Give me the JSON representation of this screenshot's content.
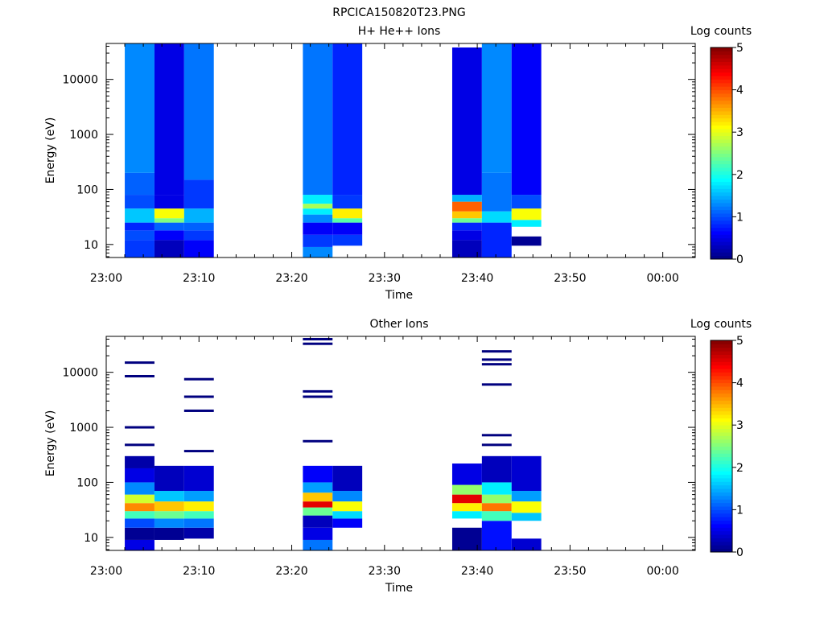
{
  "page_title": "RPCICA150820T23.PNG",
  "colormap": {
    "stops": [
      "#00007f",
      "#0000ff",
      "#007fff",
      "#00ffff",
      "#7fff7f",
      "#ffff00",
      "#ff7f00",
      "#ff0000",
      "#7f0000"
    ]
  },
  "chart_data": [
    {
      "type": "heatmap",
      "title": "H+ He++ Ions",
      "xlabel": "Time",
      "ylabel": "Energy (eV)",
      "x_ticks": [
        "23:00",
        "23:10",
        "23:20",
        "23:30",
        "23:40",
        "23:50",
        "00:00"
      ],
      "x_range_minutes": [
        0,
        63.5
      ],
      "y_scale": "log",
      "y_ticks": [
        "10",
        "100",
        "1000",
        "10000"
      ],
      "y_range_eV": [
        5.8,
        45000
      ],
      "colorbar": {
        "label": "Log counts",
        "range": [
          0,
          5
        ],
        "ticks": [
          "0",
          "1",
          "2",
          "3",
          "4",
          "5"
        ]
      },
      "columns": [
        {
          "t_start": 2.0,
          "t_end": 5.2,
          "e_min": 5.8,
          "e_max": 45000,
          "bands": [
            {
              "e_min": 5.8,
              "e_max": 12,
              "value": 0.9
            },
            {
              "e_min": 12,
              "e_max": 18,
              "value": 1.0
            },
            {
              "e_min": 18,
              "e_max": 25,
              "value": 0.8
            },
            {
              "e_min": 25,
              "e_max": 45,
              "value": 1.6
            },
            {
              "e_min": 45,
              "e_max": 80,
              "value": 1.0
            },
            {
              "e_min": 80,
              "e_max": 200,
              "value": 1.1
            },
            {
              "e_min": 200,
              "e_max": 45000,
              "value": 1.3
            }
          ]
        },
        {
          "t_start": 5.2,
          "t_end": 8.4,
          "e_min": 5.8,
          "e_max": 45000,
          "bands": [
            {
              "e_min": 5.8,
              "e_max": 12,
              "value": 0.3
            },
            {
              "e_min": 12,
              "e_max": 18,
              "value": 0.6
            },
            {
              "e_min": 18,
              "e_max": 25,
              "value": 1.1
            },
            {
              "e_min": 25,
              "e_max": 30,
              "value": 2.5
            },
            {
              "e_min": 30,
              "e_max": 45,
              "value": 3.1
            },
            {
              "e_min": 45,
              "e_max": 80,
              "value": 0.5
            },
            {
              "e_min": 80,
              "e_max": 45000,
              "value": 0.5
            }
          ]
        },
        {
          "t_start": 8.4,
          "t_end": 11.6,
          "e_min": 5.8,
          "e_max": 45000,
          "bands": [
            {
              "e_min": 5.8,
              "e_max": 12,
              "value": 0.6
            },
            {
              "e_min": 12,
              "e_max": 18,
              "value": 0.9
            },
            {
              "e_min": 18,
              "e_max": 25,
              "value": 1.1
            },
            {
              "e_min": 25,
              "e_max": 45,
              "value": 1.5
            },
            {
              "e_min": 45,
              "e_max": 150,
              "value": 0.9
            },
            {
              "e_min": 150,
              "e_max": 45000,
              "value": 1.2
            }
          ]
        },
        {
          "t_start": 21.2,
          "t_end": 24.4,
          "e_min": 5.8,
          "e_max": 45000,
          "bands": [
            {
              "e_min": 5.8,
              "e_max": 9,
              "value": 1.3
            },
            {
              "e_min": 9,
              "e_max": 15,
              "value": 0.9
            },
            {
              "e_min": 15,
              "e_max": 25,
              "value": 0.6
            },
            {
              "e_min": 25,
              "e_max": 35,
              "value": 1.3
            },
            {
              "e_min": 35,
              "e_max": 45,
              "value": 1.8
            },
            {
              "e_min": 45,
              "e_max": 55,
              "value": 2.7
            },
            {
              "e_min": 55,
              "e_max": 80,
              "value": 1.8
            },
            {
              "e_min": 80,
              "e_max": 45000,
              "value": 1.2
            }
          ]
        },
        {
          "t_start": 24.4,
          "t_end": 27.6,
          "e_min": 9.5,
          "e_max": 45000,
          "bands": [
            {
              "e_min": 9.5,
              "e_max": 15,
              "value": 0.9
            },
            {
              "e_min": 15,
              "e_max": 25,
              "value": 0.6
            },
            {
              "e_min": 25,
              "e_max": 30,
              "value": 2.3
            },
            {
              "e_min": 30,
              "e_max": 45,
              "value": 3.2
            },
            {
              "e_min": 45,
              "e_max": 80,
              "value": 0.9
            },
            {
              "e_min": 80,
              "e_max": 45000,
              "value": 0.8
            }
          ]
        },
        {
          "t_start": 37.3,
          "t_end": 40.5,
          "e_min": 5.8,
          "e_max": 38000,
          "bands": [
            {
              "e_min": 5.8,
              "e_max": 12,
              "value": 0.3
            },
            {
              "e_min": 12,
              "e_max": 18,
              "value": 0.5
            },
            {
              "e_min": 18,
              "e_max": 25,
              "value": 0.8
            },
            {
              "e_min": 25,
              "e_max": 30,
              "value": 2.4
            },
            {
              "e_min": 30,
              "e_max": 40,
              "value": 3.4
            },
            {
              "e_min": 40,
              "e_max": 60,
              "value": 3.9
            },
            {
              "e_min": 60,
              "e_max": 80,
              "value": 1.5
            },
            {
              "e_min": 80,
              "e_max": 38000,
              "value": 0.5
            }
          ]
        },
        {
          "t_start": 40.5,
          "t_end": 43.7,
          "e_min": 5.8,
          "e_max": 45000,
          "bands": [
            {
              "e_min": 5.8,
              "e_max": 25,
              "value": 0.8
            },
            {
              "e_min": 25,
              "e_max": 40,
              "value": 1.7
            },
            {
              "e_min": 40,
              "e_max": 200,
              "value": 1.2
            },
            {
              "e_min": 200,
              "e_max": 45000,
              "value": 1.3
            }
          ]
        },
        {
          "t_start": 43.7,
          "t_end": 46.9,
          "e_min": 9.5,
          "e_max": 45000,
          "bands": [
            {
              "e_min": 9.5,
              "e_max": 14,
              "value": 0.1
            },
            {
              "e_min": 21,
              "e_max": 28,
              "value": 1.8
            },
            {
              "e_min": 28,
              "e_max": 45,
              "value": 3.1
            },
            {
              "e_min": 45,
              "e_max": 80,
              "value": 1.0
            },
            {
              "e_min": 80,
              "e_max": 45000,
              "value": 0.6
            }
          ]
        }
      ]
    },
    {
      "type": "heatmap",
      "title": "Other Ions",
      "xlabel": "Time",
      "ylabel": "Energy (eV)",
      "x_ticks": [
        "23:00",
        "23:10",
        "23:20",
        "23:30",
        "23:40",
        "23:50",
        "00:00"
      ],
      "x_range_minutes": [
        0,
        63.5
      ],
      "y_scale": "log",
      "y_ticks": [
        "10",
        "100",
        "1000",
        "10000"
      ],
      "y_range_eV": [
        5.8,
        45000
      ],
      "colorbar": {
        "label": "Log counts",
        "range": [
          0,
          5
        ],
        "ticks": [
          "0",
          "1",
          "2",
          "3",
          "4",
          "5"
        ]
      },
      "columns": [
        {
          "t_start": 2.0,
          "t_end": 5.2,
          "e_min": 5.8,
          "e_max": 300,
          "bands": [
            {
              "e_min": 5.8,
              "e_max": 9,
              "value": 0.5
            },
            {
              "e_min": 9,
              "e_max": 15,
              "value": 0.1
            },
            {
              "e_min": 15,
              "e_max": 22,
              "value": 1.0
            },
            {
              "e_min": 22,
              "e_max": 30,
              "value": 2.2
            },
            {
              "e_min": 30,
              "e_max": 42,
              "value": 3.7
            },
            {
              "e_min": 42,
              "e_max": 60,
              "value": 2.9
            },
            {
              "e_min": 60,
              "e_max": 100,
              "value": 1.3
            },
            {
              "e_min": 100,
              "e_max": 180,
              "value": 0.5
            },
            {
              "e_min": 180,
              "e_max": 300,
              "value": 0.2
            }
          ]
        },
        {
          "t_start": 5.2,
          "t_end": 8.4,
          "e_min": 9,
          "e_max": 200,
          "bands": [
            {
              "e_min": 9,
              "e_max": 15,
              "value": 0.1
            },
            {
              "e_min": 15,
              "e_max": 22,
              "value": 1.3
            },
            {
              "e_min": 22,
              "e_max": 30,
              "value": 2.4
            },
            {
              "e_min": 30,
              "e_max": 45,
              "value": 3.4
            },
            {
              "e_min": 45,
              "e_max": 70,
              "value": 1.6
            },
            {
              "e_min": 70,
              "e_max": 200,
              "value": 0.3
            }
          ]
        },
        {
          "t_start": 8.4,
          "t_end": 11.6,
          "e_min": 9.5,
          "e_max": 200,
          "bands": [
            {
              "e_min": 9.5,
              "e_max": 15,
              "value": 0.2
            },
            {
              "e_min": 15,
              "e_max": 22,
              "value": 1.2
            },
            {
              "e_min": 22,
              "e_max": 30,
              "value": 2.2
            },
            {
              "e_min": 30,
              "e_max": 45,
              "value": 3.2
            },
            {
              "e_min": 45,
              "e_max": 70,
              "value": 1.4
            },
            {
              "e_min": 70,
              "e_max": 200,
              "value": 0.4
            }
          ]
        },
        {
          "t_start": 21.2,
          "t_end": 24.4,
          "e_min": 5.8,
          "e_max": 200,
          "bands": [
            {
              "e_min": 5.8,
              "e_max": 9,
              "value": 1.2
            },
            {
              "e_min": 9,
              "e_max": 15,
              "value": 0.5
            },
            {
              "e_min": 15,
              "e_max": 25,
              "value": 0.3
            },
            {
              "e_min": 25,
              "e_max": 35,
              "value": 2.4
            },
            {
              "e_min": 35,
              "e_max": 45,
              "value": 4.5
            },
            {
              "e_min": 45,
              "e_max": 65,
              "value": 3.4
            },
            {
              "e_min": 65,
              "e_max": 100,
              "value": 1.4
            },
            {
              "e_min": 100,
              "e_max": 200,
              "value": 0.6
            }
          ]
        },
        {
          "t_start": 24.4,
          "t_end": 27.6,
          "e_min": 15,
          "e_max": 200,
          "bands": [
            {
              "e_min": 15,
              "e_max": 22,
              "value": 0.6
            },
            {
              "e_min": 22,
              "e_max": 30,
              "value": 1.7
            },
            {
              "e_min": 30,
              "e_max": 45,
              "value": 3.1
            },
            {
              "e_min": 45,
              "e_max": 70,
              "value": 1.3
            },
            {
              "e_min": 70,
              "e_max": 200,
              "value": 0.3
            }
          ]
        },
        {
          "t_start": 37.3,
          "t_end": 40.5,
          "e_min": 5.8,
          "e_max": 220,
          "bands": [
            {
              "e_min": 5.8,
              "e_max": 15,
              "value": 0.1
            },
            {
              "e_min": 22,
              "e_max": 30,
              "value": 1.8
            },
            {
              "e_min": 30,
              "e_max": 42,
              "value": 3.2
            },
            {
              "e_min": 42,
              "e_max": 60,
              "value": 4.5
            },
            {
              "e_min": 60,
              "e_max": 90,
              "value": 2.6
            },
            {
              "e_min": 90,
              "e_max": 220,
              "value": 0.5
            }
          ]
        },
        {
          "t_start": 40.5,
          "t_end": 43.7,
          "e_min": 5.8,
          "e_max": 300,
          "bands": [
            {
              "e_min": 5.8,
              "e_max": 20,
              "value": 0.7
            },
            {
              "e_min": 20,
              "e_max": 30,
              "value": 2.2
            },
            {
              "e_min": 30,
              "e_max": 42,
              "value": 3.8
            },
            {
              "e_min": 42,
              "e_max": 60,
              "value": 2.6
            },
            {
              "e_min": 60,
              "e_max": 100,
              "value": 1.8
            },
            {
              "e_min": 100,
              "e_max": 300,
              "value": 0.3
            }
          ]
        },
        {
          "t_start": 43.7,
          "t_end": 46.9,
          "e_min": 5.8,
          "e_max": 300,
          "bands": [
            {
              "e_min": 5.8,
              "e_max": 9.5,
              "value": 0.4
            },
            {
              "e_min": 20,
              "e_max": 28,
              "value": 1.6
            },
            {
              "e_min": 28,
              "e_max": 45,
              "value": 3.1
            },
            {
              "e_min": 45,
              "e_max": 70,
              "value": 1.4
            },
            {
              "e_min": 70,
              "e_max": 300,
              "value": 0.4
            }
          ]
        }
      ],
      "isolated_lines": [
        {
          "t_start": 2.0,
          "t_end": 5.2,
          "energies": [
            15000,
            8500,
            1000,
            480
          ]
        },
        {
          "t_start": 8.4,
          "t_end": 11.6,
          "energies": [
            7500,
            3600,
            2000,
            370
          ]
        },
        {
          "t_start": 21.2,
          "t_end": 24.4,
          "energies": [
            40000,
            33000,
            4500,
            3600,
            560
          ]
        },
        {
          "t_start": 40.5,
          "t_end": 43.7,
          "energies": [
            24000,
            17000,
            14000,
            6000,
            720,
            480
          ]
        }
      ]
    }
  ]
}
